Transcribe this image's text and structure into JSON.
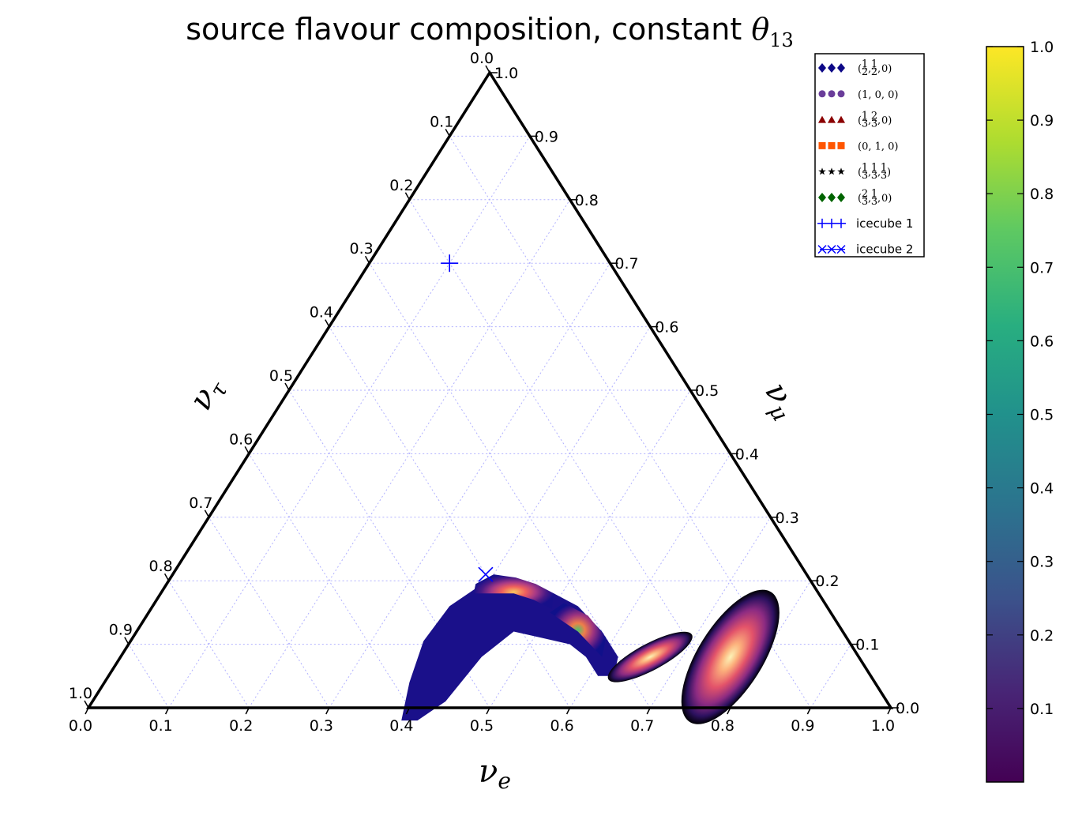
{
  "chart_data": {
    "type": "scatter",
    "subtype": "ternary-density",
    "title": "source flavour composition, constant θ13",
    "title_main": "source flavour composition, constant ",
    "title_symbol": "θ",
    "title_subscript": "13",
    "axes": {
      "bottom": {
        "label_symbol": "ν",
        "label_sub": "e",
        "range": [
          0.0,
          1.0
        ]
      },
      "right": {
        "label_symbol": "ν",
        "label_sub": "μ",
        "range": [
          0.0,
          1.0
        ]
      },
      "left": {
        "label_symbol": "ν",
        "label_sub": "τ",
        "range": [
          0.0,
          1.0
        ]
      }
    },
    "ticks": [
      "0.0",
      "0.1",
      "0.2",
      "0.3",
      "0.4",
      "0.5",
      "0.6",
      "0.7",
      "0.8",
      "0.9",
      "1.0"
    ],
    "grid": true,
    "legend": {
      "placement": "top-right",
      "entries": [
        {
          "num": [
            "1",
            "1"
          ],
          "den": [
            "2",
            "2"
          ],
          "tail": "0",
          "marker": "diamond",
          "color": "#0d0887",
          "label": "(1/2, 1/2, 0)"
        },
        {
          "label": "(1, 0, 0)",
          "marker": "circle",
          "color": "#6a3d9a"
        },
        {
          "num": [
            "1",
            "2"
          ],
          "den": [
            "3",
            "3"
          ],
          "tail": "0",
          "marker": "triangle",
          "color": "#8b0000",
          "label": "(1/3, 2/3, 0)"
        },
        {
          "label": "(0, 1, 0)",
          "marker": "square",
          "color": "#ff5500"
        },
        {
          "num": [
            "1",
            "1",
            "1"
          ],
          "den": [
            "3",
            "3",
            "3"
          ],
          "tail": "",
          "marker": "star",
          "color": "#000000",
          "label": "(1/3, 1/3, 1/3)"
        },
        {
          "num": [
            "2",
            "1"
          ],
          "den": [
            "3",
            "3"
          ],
          "tail": "0",
          "marker": "diamond",
          "color": "#006400",
          "label": "(2/3, 1/3, 0)"
        },
        {
          "label": "icecube 1",
          "marker": "plus",
          "color": "#0000ff"
        },
        {
          "label": "icecube 2",
          "marker": "x",
          "color": "#0000ff"
        }
      ]
    },
    "colorbar": {
      "cmap": "viridis",
      "range": [
        0.0,
        1.0
      ],
      "ticks": [
        "0.1",
        "0.2",
        "0.3",
        "0.4",
        "0.5",
        "0.6",
        "0.7",
        "0.8",
        "0.9",
        "1.0"
      ]
    },
    "points": [
      {
        "series": "icecube 1",
        "marker": "plus",
        "nu_e": 0.1,
        "nu_mu": 0.2,
        "nu_tau": 0.7
      },
      {
        "series": "icecube 2",
        "marker": "x",
        "nu_e": 0.39,
        "nu_mu": 0.4,
        "nu_tau": 0.21
      }
    ],
    "density_regions": [
      {
        "series": "(1/2, 1/2, 0)",
        "marker": "diamond",
        "centroid": {
          "nu_e": 0.44,
          "nu_mu": 0.45,
          "nu_tau": 0.11
        },
        "peak": 0.6
      },
      {
        "series": "(1, 0, 0)",
        "marker": "circle",
        "centroid": {
          "nu_e": 0.57,
          "nu_mu": 0.31,
          "nu_tau": 0.12
        },
        "peak": 0.35
      },
      {
        "series": "(1/3, 2/3, 0)",
        "marker": "triangle",
        "centroid": {
          "nu_e": 0.6,
          "nu_mu": 0.28,
          "nu_tau": 0.12
        },
        "peak": 0.9
      },
      {
        "series": "(0, 1, 0)",
        "marker": "square",
        "centroid": {
          "nu_e": 0.59,
          "nu_mu": 0.28,
          "nu_tau": 0.13
        },
        "peak": 0.8
      },
      {
        "series": "(1/3, 1/3, 1/3)",
        "marker": "star",
        "centroid": {
          "nu_e": 0.66,
          "nu_mu": 0.21,
          "nu_tau": 0.13
        },
        "peak": 1.0
      },
      {
        "series": "(2/3, 1/3, 0)",
        "marker": "diamond",
        "centroid": {
          "nu_e": 0.76,
          "nu_mu": 0.06,
          "nu_tau": 0.18
        },
        "peak": 1.0
      }
    ]
  }
}
